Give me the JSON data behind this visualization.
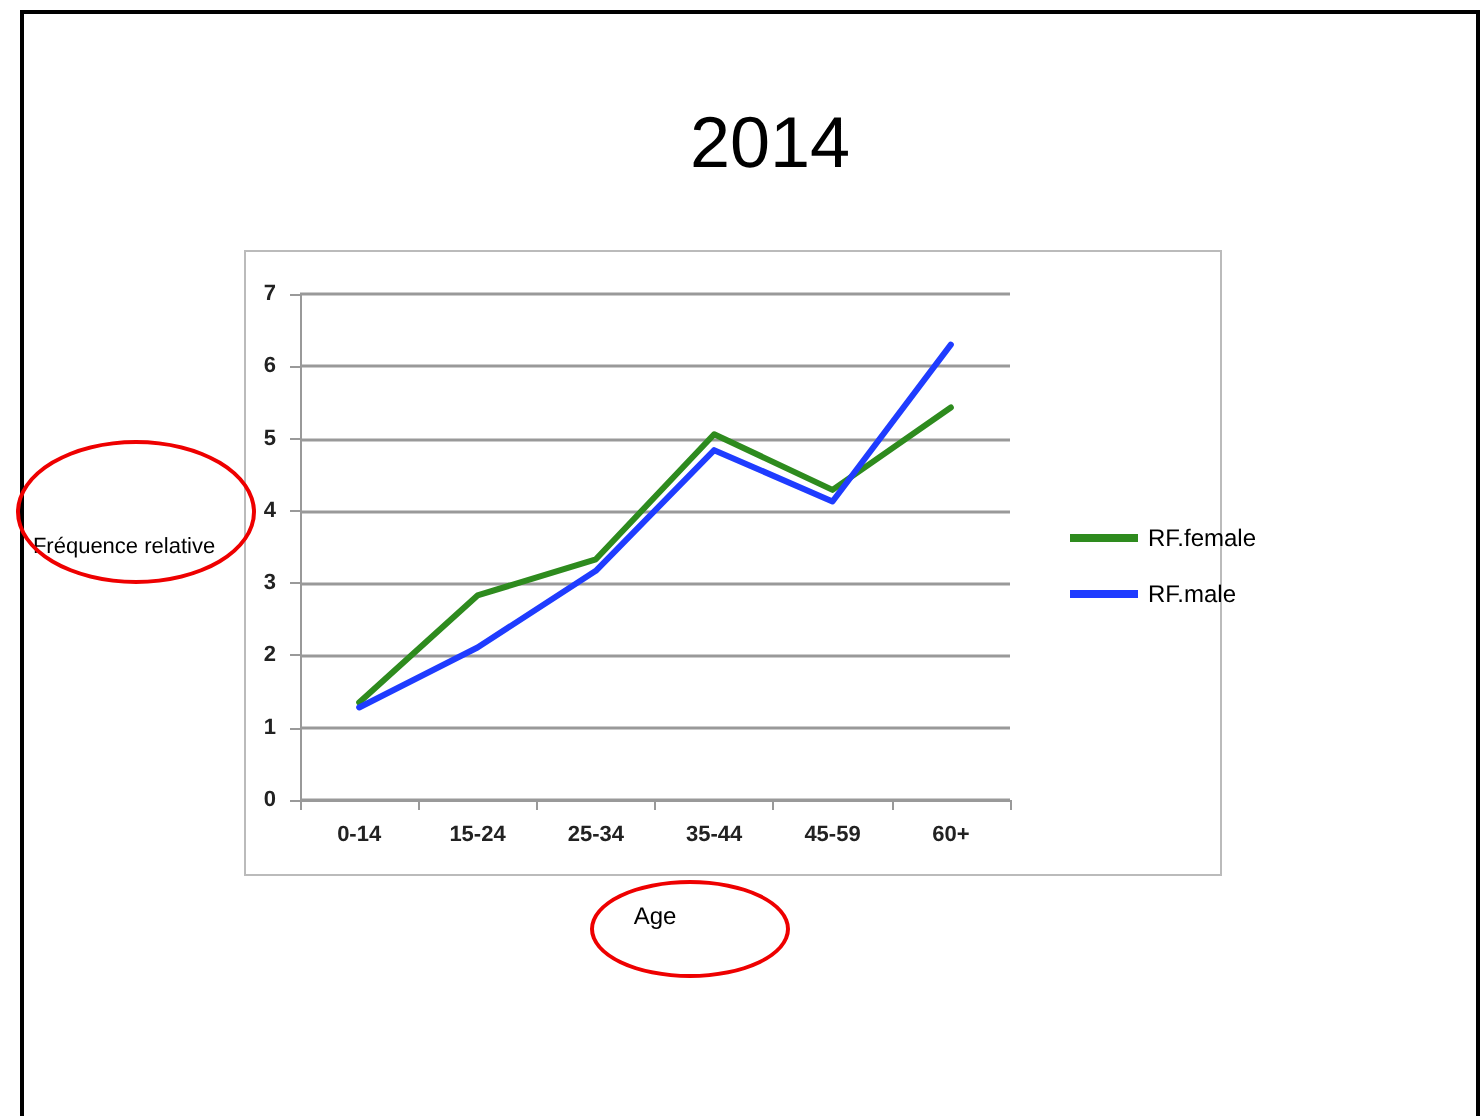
{
  "chart_data": {
    "type": "line",
    "title": "2014",
    "xlabel": "Age",
    "ylabel": "Fréquence relative",
    "categories": [
      "0-14",
      "15-24",
      "25-34",
      "35-44",
      "45-59",
      "60+"
    ],
    "series": [
      {
        "name": "RF.female",
        "color": "#2e8b1e",
        "values": [
          1.35,
          2.83,
          3.33,
          5.06,
          4.29,
          5.43
        ]
      },
      {
        "name": "RF.male",
        "color": "#1f3cff",
        "values": [
          1.28,
          2.11,
          3.17,
          4.84,
          4.13,
          6.3
        ]
      }
    ],
    "ylim": [
      0,
      7
    ],
    "yticks": [
      0,
      1,
      2,
      3,
      4,
      5,
      6,
      7
    ],
    "grid": "y",
    "legend": "right",
    "marker": "none",
    "line_style": "solid"
  }
}
